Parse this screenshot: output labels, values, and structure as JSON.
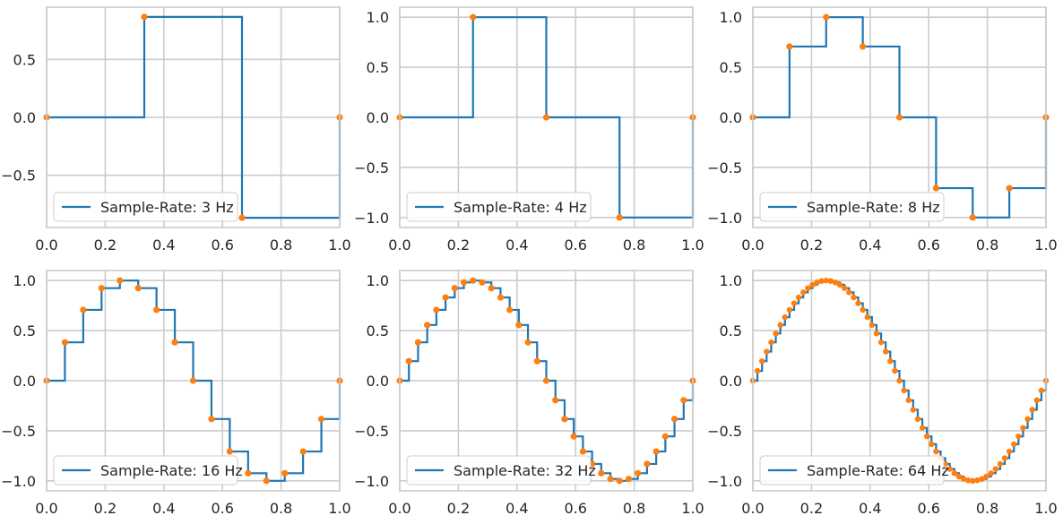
{
  "figure": {
    "line_color": "#1f77b4",
    "marker_color": "#ff7f0e",
    "grid_color": "#cccccc",
    "text_color": "#262626",
    "background": "#ffffff"
  },
  "chart_data": [
    {
      "type": "line",
      "step": "post",
      "legend": "Sample-Rate: 3 Hz",
      "legend_loc": "lower left",
      "grid": true,
      "xlim": [
        0,
        1
      ],
      "ylim": [
        -0.95,
        0.95
      ],
      "xticks": [
        0,
        0.2,
        0.4,
        0.6,
        0.8,
        1.0
      ],
      "xtick_labels": [
        "0.0",
        "0.2",
        "0.4",
        "0.6",
        "0.8",
        "1.0"
      ],
      "yticks": [
        -0.5,
        0,
        0.5
      ],
      "ytick_labels": [
        "−0.5",
        "0.0",
        "0.5"
      ],
      "x": [
        0,
        0.3333,
        0.6667,
        1.0
      ],
      "y": [
        0,
        0.866,
        -0.866,
        0
      ]
    },
    {
      "type": "line",
      "step": "post",
      "legend": "Sample-Rate: 4 Hz",
      "legend_loc": "lower left",
      "grid": true,
      "xlim": [
        0,
        1
      ],
      "ylim": [
        -1.1,
        1.1
      ],
      "xticks": [
        0,
        0.2,
        0.4,
        0.6,
        0.8,
        1.0
      ],
      "xtick_labels": [
        "0.0",
        "0.2",
        "0.4",
        "0.6",
        "0.8",
        "1.0"
      ],
      "yticks": [
        -1,
        -0.5,
        0,
        0.5,
        1
      ],
      "ytick_labels": [
        "−1.0",
        "−0.5",
        "0.0",
        "0.5",
        "1.0"
      ],
      "x": [
        0,
        0.25,
        0.5,
        0.75,
        1.0
      ],
      "y": [
        0,
        1,
        0,
        -1,
        0
      ]
    },
    {
      "type": "line",
      "step": "post",
      "legend": "Sample-Rate: 8 Hz",
      "legend_loc": "lower left",
      "grid": true,
      "xlim": [
        0,
        1
      ],
      "ylim": [
        -1.1,
        1.1
      ],
      "xticks": [
        0,
        0.2,
        0.4,
        0.6,
        0.8,
        1.0
      ],
      "xtick_labels": [
        "0.0",
        "0.2",
        "0.4",
        "0.6",
        "0.8",
        "1.0"
      ],
      "yticks": [
        -1,
        -0.5,
        0,
        0.5,
        1
      ],
      "ytick_labels": [
        "−1.0",
        "−0.5",
        "0.0",
        "0.5",
        "1.0"
      ],
      "x": [
        0,
        0.125,
        0.25,
        0.375,
        0.5,
        0.625,
        0.75,
        0.875,
        1.0
      ],
      "y": [
        0,
        0.707,
        1,
        0.707,
        0,
        -0.707,
        -1,
        -0.707,
        0
      ]
    },
    {
      "type": "line",
      "step": "post",
      "legend": "Sample-Rate: 16 Hz",
      "legend_loc": "lower left",
      "grid": true,
      "xlim": [
        0,
        1
      ],
      "ylim": [
        -1.1,
        1.1
      ],
      "xticks": [
        0,
        0.2,
        0.4,
        0.6,
        0.8,
        1.0
      ],
      "xtick_labels": [
        "0.0",
        "0.2",
        "0.4",
        "0.6",
        "0.8",
        "1.0"
      ],
      "yticks": [
        -1,
        -0.5,
        0,
        0.5,
        1
      ],
      "ytick_labels": [
        "−1.0",
        "−0.5",
        "0.0",
        "0.5",
        "1.0"
      ],
      "x": [
        0,
        0.0625,
        0.125,
        0.1875,
        0.25,
        0.3125,
        0.375,
        0.4375,
        0.5,
        0.5625,
        0.625,
        0.6875,
        0.75,
        0.8125,
        0.875,
        0.9375,
        1.0
      ],
      "y": [
        0,
        0.383,
        0.707,
        0.924,
        1,
        0.924,
        0.707,
        0.383,
        0,
        -0.383,
        -0.707,
        -0.924,
        -1,
        -0.924,
        -0.707,
        -0.383,
        0
      ]
    },
    {
      "type": "line",
      "step": "post",
      "legend": "Sample-Rate: 32 Hz",
      "legend_loc": "lower left",
      "grid": true,
      "xlim": [
        0,
        1
      ],
      "ylim": [
        -1.1,
        1.1
      ],
      "xticks": [
        0,
        0.2,
        0.4,
        0.6,
        0.8,
        1.0
      ],
      "xtick_labels": [
        "0.0",
        "0.2",
        "0.4",
        "0.6",
        "0.8",
        "1.0"
      ],
      "yticks": [
        -1,
        -0.5,
        0,
        0.5,
        1
      ],
      "ytick_labels": [
        "−1.0",
        "−0.5",
        "0.0",
        "0.5",
        "1.0"
      ],
      "x": [
        0,
        0.03125,
        0.0625,
        0.09375,
        0.125,
        0.15625,
        0.1875,
        0.21875,
        0.25,
        0.28125,
        0.3125,
        0.34375,
        0.375,
        0.40625,
        0.4375,
        0.46875,
        0.5,
        0.53125,
        0.5625,
        0.59375,
        0.625,
        0.65625,
        0.6875,
        0.71875,
        0.75,
        0.78125,
        0.8125,
        0.84375,
        0.875,
        0.90625,
        0.9375,
        0.96875,
        1.0
      ],
      "y": [
        0,
        0.195,
        0.383,
        0.556,
        0.707,
        0.831,
        0.924,
        0.981,
        1,
        0.981,
        0.924,
        0.831,
        0.707,
        0.556,
        0.383,
        0.195,
        0,
        -0.195,
        -0.383,
        -0.556,
        -0.707,
        -0.831,
        -0.924,
        -0.981,
        -1,
        -0.981,
        -0.924,
        -0.831,
        -0.707,
        -0.556,
        -0.383,
        -0.195,
        0
      ]
    },
    {
      "type": "line",
      "step": "post",
      "legend": "Sample-Rate: 64 Hz",
      "legend_loc": "lower left",
      "grid": true,
      "xlim": [
        0,
        1
      ],
      "ylim": [
        -1.1,
        1.1
      ],
      "xticks": [
        0,
        0.2,
        0.4,
        0.6,
        0.8,
        1.0
      ],
      "xtick_labels": [
        "0.0",
        "0.2",
        "0.4",
        "0.6",
        "0.8",
        "1.0"
      ],
      "yticks": [
        -1,
        -0.5,
        0,
        0.5,
        1
      ],
      "ytick_labels": [
        "−1.0",
        "−0.5",
        "0.0",
        "0.5",
        "1.0"
      ],
      "sample_rate_hz": 64,
      "x": [
        0,
        0.015625,
        0.03125,
        0.046875,
        0.0625,
        0.078125,
        0.09375,
        0.109375,
        0.125,
        0.140625,
        0.15625,
        0.171875,
        0.1875,
        0.203125,
        0.21875,
        0.234375,
        0.25,
        0.265625,
        0.28125,
        0.296875,
        0.3125,
        0.328125,
        0.34375,
        0.359375,
        0.375,
        0.390625,
        0.40625,
        0.421875,
        0.4375,
        0.453125,
        0.46875,
        0.484375,
        0.5,
        0.515625,
        0.53125,
        0.546875,
        0.5625,
        0.578125,
        0.59375,
        0.609375,
        0.625,
        0.640625,
        0.65625,
        0.671875,
        0.6875,
        0.703125,
        0.71875,
        0.734375,
        0.75,
        0.765625,
        0.78125,
        0.796875,
        0.8125,
        0.828125,
        0.84375,
        0.859375,
        0.875,
        0.890625,
        0.90625,
        0.921875,
        0.9375,
        0.953125,
        0.96875,
        0.984375,
        1.0
      ],
      "y": [
        0,
        0.098,
        0.195,
        0.29,
        0.383,
        0.471,
        0.556,
        0.634,
        0.707,
        0.773,
        0.831,
        0.882,
        0.924,
        0.957,
        0.981,
        0.995,
        1,
        0.995,
        0.981,
        0.957,
        0.924,
        0.882,
        0.831,
        0.773,
        0.707,
        0.634,
        0.556,
        0.471,
        0.383,
        0.29,
        0.195,
        0.098,
        0,
        -0.098,
        -0.195,
        -0.29,
        -0.383,
        -0.471,
        -0.556,
        -0.634,
        -0.707,
        -0.773,
        -0.831,
        -0.882,
        -0.924,
        -0.957,
        -0.981,
        -0.995,
        -1,
        -0.995,
        -0.981,
        -0.957,
        -0.924,
        -0.882,
        -0.831,
        -0.773,
        -0.707,
        -0.634,
        -0.556,
        -0.471,
        -0.383,
        -0.29,
        -0.195,
        -0.098,
        0
      ]
    }
  ]
}
